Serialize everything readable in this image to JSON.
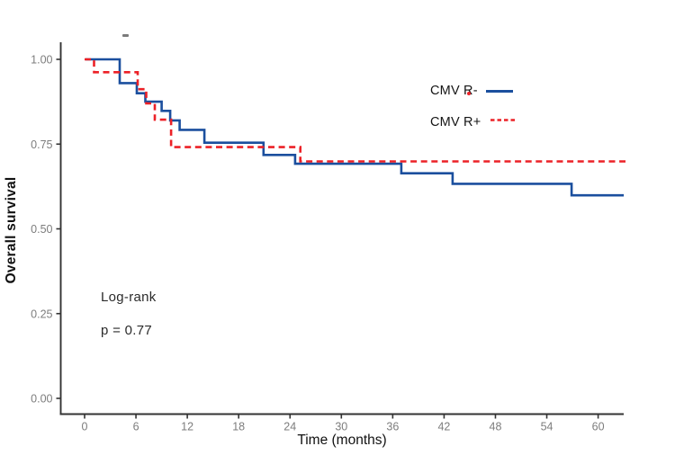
{
  "chart_data": {
    "type": "line",
    "subtype": "kaplan-meier-step",
    "title": "",
    "xlabel": "Time (months)",
    "ylabel": "Overall survival",
    "xlim": [
      0,
      63.5
    ],
    "ylim": [
      0,
      1.0
    ],
    "x_ticks": [
      0,
      6,
      12,
      18,
      24,
      30,
      36,
      42,
      48,
      54,
      60
    ],
    "x_tick_labels": [
      "0",
      "6",
      "12",
      "18",
      "24",
      "30",
      "36",
      "42",
      "48",
      "54",
      "60"
    ],
    "y_ticks": [
      0.0,
      0.25,
      0.5,
      0.75,
      1.0
    ],
    "y_tick_labels": [
      "0.00",
      "0.25",
      "0.50",
      "0.75",
      "1.00"
    ],
    "grid": false,
    "legend_position": "inside-upper-right",
    "series": [
      {
        "name": "CMV R-",
        "color": "#1b4f9e",
        "style": "solid",
        "points": [
          [
            0.1,
            1.0
          ],
          [
            4.1,
            1.0
          ],
          [
            4.1,
            0.93
          ],
          [
            6.1,
            0.93
          ],
          [
            6.1,
            0.9
          ],
          [
            7.1,
            0.9
          ],
          [
            7.1,
            0.875
          ],
          [
            9.0,
            0.875
          ],
          [
            9.0,
            0.848
          ],
          [
            10.0,
            0.848
          ],
          [
            10.0,
            0.82
          ],
          [
            11.1,
            0.82
          ],
          [
            11.1,
            0.792
          ],
          [
            14.0,
            0.792
          ],
          [
            14.0,
            0.754
          ],
          [
            20.9,
            0.754
          ],
          [
            20.9,
            0.718
          ],
          [
            24.6,
            0.718
          ],
          [
            24.6,
            0.692
          ],
          [
            37.0,
            0.692
          ],
          [
            37.0,
            0.664
          ],
          [
            43.0,
            0.664
          ],
          [
            43.0,
            0.633
          ],
          [
            56.9,
            0.633
          ],
          [
            56.9,
            0.599
          ],
          [
            63.0,
            0.599
          ]
        ]
      },
      {
        "name": "CMV R+",
        "color": "#ec2127",
        "style": "dashed",
        "points": [
          [
            0.0,
            1.0
          ],
          [
            1.1,
            1.0
          ],
          [
            1.1,
            0.962
          ],
          [
            6.2,
            0.962
          ],
          [
            6.2,
            0.912
          ],
          [
            7.2,
            0.912
          ],
          [
            7.2,
            0.87
          ],
          [
            8.2,
            0.87
          ],
          [
            8.2,
            0.822
          ],
          [
            10.1,
            0.822
          ],
          [
            10.1,
            0.741
          ],
          [
            25.2,
            0.741
          ],
          [
            25.2,
            0.699
          ],
          [
            63.2,
            0.699
          ]
        ]
      }
    ],
    "annotations": [
      "Log-rank",
      "p = 0.77"
    ]
  },
  "stats": {
    "test_label": "Log-rank",
    "p_value_label": "p = 0.77"
  },
  "colors": {
    "series_cmv_r_negative": "#1b4f9e",
    "series_cmv_r_positive": "#ec2127",
    "axis_line": "#333333",
    "tick_label": "#7d7d7d"
  }
}
